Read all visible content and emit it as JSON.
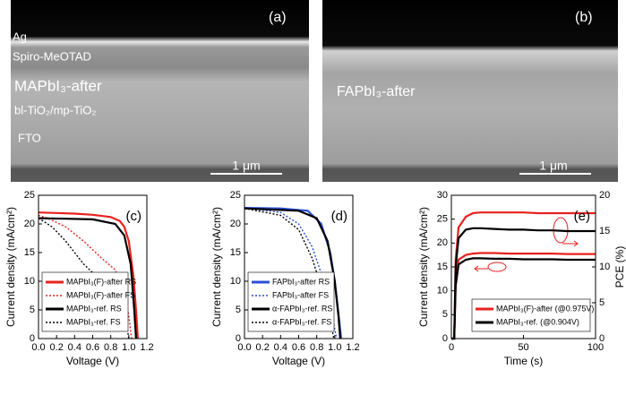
{
  "images": [
    {
      "label": "(a)",
      "annotations": [
        "Ag",
        "Spiro-MeOTAD",
        "MAPbI₃-after",
        "bl-TiO₂/mp-TiO₂",
        "FTO"
      ],
      "scale_bar": "1 μm"
    },
    {
      "label": "(b)",
      "annotations": [
        "FAPbI₃-after"
      ],
      "scale_bar": "1 μm"
    }
  ],
  "chart_data": [
    {
      "type": "line",
      "label": "(c)",
      "x_label": "Voltage (V)",
      "y_label": "Current density (mA/cm²)",
      "xlim": [
        0,
        1.2
      ],
      "xticks": [
        {
          "value": 0,
          "label": "0.0"
        },
        0.2,
        0.4,
        0.6,
        0.8,
        {
          "value": 1,
          "label": "1.0"
        },
        1.2
      ],
      "ylim": [
        0,
        25
      ],
      "yticks": [
        0,
        5,
        10,
        15,
        20,
        25
      ],
      "legend": "lower left",
      "series": [
        {
          "name": "MAPbI₃(F)-after RS",
          "color": "#e8211e",
          "linestyle": "solid",
          "x": [
            0,
            0.2,
            0.4,
            0.6,
            0.8,
            0.9,
            0.95,
            1,
            1.05,
            1.08,
            1.1
          ],
          "values": [
            22,
            21.9,
            21.8,
            21.6,
            21.2,
            20.5,
            19.5,
            17,
            11,
            5,
            0
          ]
        },
        {
          "name": "MAPbI₃(F)-after FS",
          "color": "#e8211e",
          "linestyle": "dotted",
          "x": [
            0,
            0.1,
            0.3,
            0.5,
            0.7,
            0.85,
            0.95,
            1,
            1.03
          ],
          "values": [
            21.5,
            21,
            19.5,
            17,
            14,
            12,
            8,
            4,
            0
          ]
        },
        {
          "name": "MAPbI₃-ref. RS",
          "color": "#000000",
          "linestyle": "solid",
          "x": [
            0,
            0.3,
            0.6,
            0.85,
            0.95,
            1.02,
            1.06,
            1.08
          ],
          "values": [
            21,
            20.9,
            20.8,
            20,
            18,
            13,
            5,
            0
          ]
        },
        {
          "name": "MAPbI₃-ref. FS",
          "color": "#000000",
          "linestyle": "dotted",
          "x": [
            0,
            0.15,
            0.3,
            0.5,
            0.7,
            0.85,
            0.95,
            1
          ],
          "values": [
            21,
            19.5,
            17,
            13,
            10,
            8,
            5,
            0
          ]
        }
      ]
    },
    {
      "type": "line",
      "label": "(d)",
      "x_label": "Voltage (V)",
      "y_label": "Current density (mA/cm²)",
      "xlim": [
        0,
        1.2
      ],
      "xticks": [
        {
          "value": 0,
          "label": "0.0"
        },
        0.2,
        0.4,
        0.6,
        0.8,
        {
          "value": 1,
          "label": "1.0"
        },
        1.2
      ],
      "ylim": [
        0,
        25
      ],
      "yticks": [
        0,
        5,
        10,
        15,
        20,
        25
      ],
      "legend": "lower left",
      "series": [
        {
          "name": "FAPbI₃-after RS",
          "color": "#2a4fd8",
          "linestyle": "solid",
          "x": [
            0,
            0.4,
            0.7,
            0.85,
            0.95,
            1,
            1.05,
            1.07
          ],
          "values": [
            22.8,
            22.7,
            22.3,
            20,
            15,
            10,
            3,
            0
          ]
        },
        {
          "name": "FAPbI₃-after FS",
          "color": "#2a4fd8",
          "linestyle": "dotted",
          "x": [
            0,
            0.4,
            0.6,
            0.75,
            0.88,
            0.97,
            1.02
          ],
          "values": [
            22.8,
            22,
            20,
            16,
            10,
            4,
            0
          ]
        },
        {
          "name": "α-FAPbI₃-ref. RS",
          "color": "#000000",
          "linestyle": "solid",
          "x": [
            0,
            0.6,
            0.8,
            0.92,
            1,
            1.04,
            1.06
          ],
          "values": [
            22.7,
            22.3,
            21,
            17,
            10,
            4,
            0
          ]
        },
        {
          "name": "α-FAPbI₃-ref. FS",
          "color": "#000000",
          "linestyle": "dotted",
          "x": [
            0,
            0.4,
            0.6,
            0.75,
            0.87,
            0.95,
            0.99
          ],
          "values": [
            22.7,
            21.5,
            19,
            14,
            8,
            3,
            0
          ]
        }
      ]
    },
    {
      "type": "line",
      "label": "(e)",
      "x_label": "Time (s)",
      "y_label": "Current density (mA/cm²)",
      "y2_label": "PCE (%)",
      "xlim": [
        0,
        100
      ],
      "xticks": [
        0,
        50,
        100
      ],
      "ylim": [
        0,
        30
      ],
      "yticks": [
        0,
        5,
        10,
        15,
        20,
        25,
        30
      ],
      "y2lim": [
        0,
        20
      ],
      "y2ticks": [
        0,
        5,
        10,
        15,
        20
      ],
      "legend": "lower right",
      "series": [
        {
          "name": "MAPbI₃(F)-after (@0.975V)",
          "color": "#e8211e",
          "linestyle": "solid",
          "x": [
            0,
            2,
            3,
            5,
            10,
            15,
            20,
            30,
            40,
            50,
            60,
            70,
            80,
            90,
            100
          ],
          "values": [
            0,
            0,
            12,
            16.5,
            17.5,
            17.8,
            17.9,
            17.9,
            17.8,
            17.8,
            17.8,
            17.8,
            17.7,
            17.7,
            17.7
          ]
        },
        {
          "color": "#e8211e",
          "linestyle": "solid",
          "axis": "y2",
          "x": [
            0,
            2,
            3,
            5,
            10,
            15,
            20,
            30,
            40,
            50,
            60,
            70,
            80,
            90,
            100
          ],
          "values": [
            0,
            0,
            11,
            15.5,
            17,
            17.5,
            17.6,
            17.6,
            17.6,
            17.6,
            17.5,
            17.5,
            17.5,
            17.5,
            17.5
          ]
        },
        {
          "name": "MAPbI₃-ref. (@0.904V)",
          "color": "#000000",
          "linestyle": "solid",
          "x": [
            0,
            2,
            3,
            5,
            10,
            15,
            20,
            30,
            40,
            50,
            60,
            70,
            80,
            90,
            100
          ],
          "values": [
            0,
            0,
            11,
            15.5,
            16.5,
            16.8,
            16.8,
            16.7,
            16.7,
            16.6,
            16.6,
            16.6,
            16.5,
            16.5,
            16.5
          ]
        },
        {
          "color": "#000000",
          "linestyle": "solid",
          "axis": "y2",
          "x": [
            0,
            2,
            3,
            5,
            10,
            15,
            20,
            30,
            40,
            50,
            60,
            70,
            80,
            90,
            100
          ],
          "values": [
            0,
            0,
            10,
            14,
            15.2,
            15.4,
            15.4,
            15.3,
            15.2,
            15.2,
            15.1,
            15.1,
            15,
            15,
            15
          ]
        }
      ]
    }
  ]
}
